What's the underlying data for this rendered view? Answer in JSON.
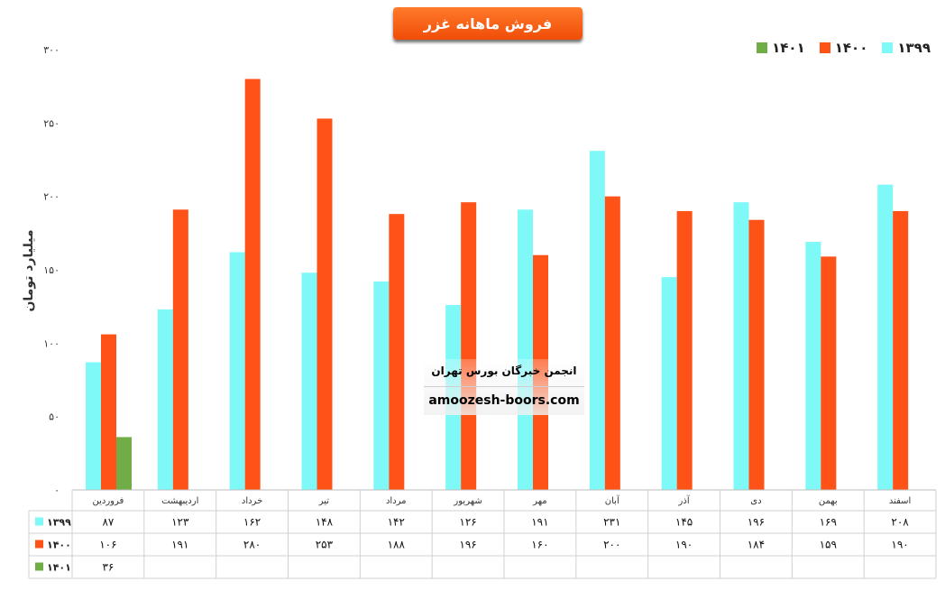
{
  "title": "فروش ماهانه غزر",
  "ylabel": "میلیارد تومان",
  "watermark": {
    "line1": "انجمن خبرگان بورس تهران",
    "line2": "amoozesh-boors.com"
  },
  "chart_data": {
    "type": "bar",
    "categories": [
      "فروردین",
      "اردیبهشت",
      "خرداد",
      "تیر",
      "مرداد",
      "شهریور",
      "مهر",
      "آبان",
      "آذر",
      "دی",
      "بهمن",
      "اسفند"
    ],
    "series": [
      {
        "name": "۱۳۹۹",
        "color": "#7ff8f8",
        "values": [
          87,
          123,
          162,
          148,
          142,
          126,
          191,
          231,
          145,
          196,
          169,
          208
        ],
        "labels": [
          "۸۷",
          "۱۲۳",
          "۱۶۲",
          "۱۴۸",
          "۱۴۲",
          "۱۲۶",
          "۱۹۱",
          "۲۳۱",
          "۱۴۵",
          "۱۹۶",
          "۱۶۹",
          "۲۰۸"
        ]
      },
      {
        "name": "۱۴۰۰",
        "color": "#ff5216",
        "values": [
          106,
          191,
          280,
          253,
          188,
          196,
          160,
          200,
          190,
          184,
          159,
          190
        ],
        "labels": [
          "۱۰۶",
          "۱۹۱",
          "۲۸۰",
          "۲۵۳",
          "۱۸۸",
          "۱۹۶",
          "۱۶۰",
          "۲۰۰",
          "۱۹۰",
          "۱۸۴",
          "۱۵۹",
          "۱۹۰"
        ]
      },
      {
        "name": "۱۴۰۱",
        "color": "#70ad47",
        "values": [
          36,
          null,
          null,
          null,
          null,
          null,
          null,
          null,
          null,
          null,
          null,
          null
        ],
        "labels": [
          "۳۶",
          "",
          "",
          "",
          "",
          "",
          "",
          "",
          "",
          "",
          "",
          ""
        ]
      }
    ],
    "ylim": [
      0,
      300
    ],
    "yticks": [
      0,
      50,
      100,
      150,
      200,
      250,
      300
    ],
    "ytick_labels": [
      "۰",
      "۵۰",
      "۱۰۰",
      "۱۵۰",
      "۲۰۰",
      "۲۵۰",
      "۳۰۰"
    ],
    "legend": "top-right",
    "grid": false,
    "data_table": true
  }
}
